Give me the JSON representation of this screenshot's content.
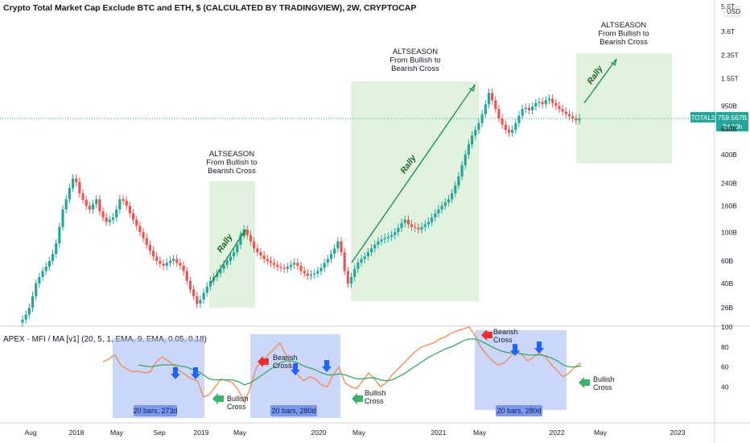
{
  "chart_data": [
    {
      "type": "candlestick",
      "title": "Crypto Total Market Cap Exclude BTC and ETH, $ (CALCULATED BY TRADINGVIEW), 2W, CRYPTOCAP",
      "scale": "log",
      "y_ticks": [
        "5.6T",
        "3.6T",
        "2.35T",
        "1.55T",
        "950B",
        "630B",
        "400B",
        "240B",
        "160B",
        "100B",
        "60B",
        "40B",
        "26B"
      ],
      "currency_label": "USD",
      "price_label": {
        "symbol": "TOTAL3",
        "value": "759.567B",
        "countdown": "2d 10h",
        "color": "#26a69a"
      },
      "x_ticks": [
        "Aug",
        "2018",
        "May",
        "Sep",
        "2019",
        "May",
        "2020",
        "May",
        "2021",
        "May",
        "2022",
        "May",
        "2023"
      ],
      "up_color": "#26a69a",
      "down_color": "#ef5350",
      "candles_close": [
        21,
        23,
        26,
        32,
        40,
        45,
        50,
        54,
        60,
        68,
        82,
        110,
        150,
        180,
        220,
        260,
        245,
        200,
        178,
        160,
        150,
        165,
        180,
        145,
        130,
        120,
        125,
        130,
        150,
        180,
        175,
        160,
        140,
        125,
        112,
        100,
        90,
        80,
        72,
        65,
        60,
        57,
        55,
        58,
        60,
        62,
        58,
        55,
        50,
        42,
        36,
        32,
        28,
        30,
        34,
        38,
        42,
        45,
        48,
        52,
        56,
        60,
        65,
        70,
        80,
        95,
        105,
        95,
        85,
        75,
        70,
        66,
        62,
        60,
        58,
        56,
        54,
        53,
        52,
        54,
        56,
        58,
        55,
        50,
        48,
        46,
        47,
        48,
        50,
        53,
        58,
        62,
        68,
        75,
        85,
        70,
        50,
        40,
        45,
        52,
        58,
        62,
        65,
        70,
        75,
        80,
        85,
        88,
        90,
        92,
        95,
        100,
        108,
        118,
        125,
        115,
        110,
        108,
        105,
        110,
        115,
        120,
        130,
        140,
        150,
        160,
        170,
        180,
        200,
        230,
        270,
        330,
        400,
        480,
        560,
        620,
        700,
        820,
        980,
        1200,
        1050,
        900,
        760,
        680,
        620,
        590,
        620,
        700,
        800,
        900,
        920,
        880,
        940,
        1000,
        1020,
        980,
        1050,
        1080,
        1000,
        950,
        900,
        860,
        820,
        790,
        760,
        735,
        759.567
      ],
      "annotations": [
        {
          "label": "ALTSEASON\nFrom Bullish to\nBearish Cross"
        },
        {
          "label": "Rally"
        },
        {
          "label": "ALTSEASON\nFrom Bullish to\nBearish Cross"
        },
        {
          "label": "Rally"
        },
        {
          "label": "ALTSEASON\nFrom Bullish to\nBearish Cross"
        },
        {
          "label": "Rally"
        }
      ]
    },
    {
      "type": "line",
      "title": "APEX - MFI / MA [v1] (20, 5, 1, EMA, 9, EMA, 0.05, 0.18)",
      "y_ticks": [
        "100",
        "80",
        "60",
        "40"
      ],
      "ylim": [
        20,
        100
      ],
      "series": [
        {
          "color": "#f4874b",
          "values": [
            65,
            68,
            72,
            62,
            58,
            55,
            56,
            54,
            55,
            65,
            70,
            66,
            62,
            56,
            52,
            48,
            46,
            30,
            32,
            40,
            48,
            46,
            44,
            36,
            24,
            40,
            60,
            65,
            72,
            78,
            84,
            72,
            60,
            52,
            46,
            50,
            48,
            42,
            40,
            52,
            60,
            44,
            40,
            38,
            46,
            54,
            48,
            40,
            44,
            52,
            58,
            64,
            70,
            76,
            80,
            82,
            84,
            88,
            90,
            94,
            96,
            98,
            100,
            92,
            80,
            72,
            66,
            62,
            64,
            70,
            76,
            72,
            66,
            70,
            74,
            70,
            62,
            56,
            50,
            54,
            60,
            64
          ]
        },
        {
          "color": "#3aa85e",
          "values": [
            null,
            null,
            null,
            null,
            null,
            null,
            62,
            61,
            60,
            61,
            62,
            62,
            62,
            61,
            60,
            58,
            56,
            52,
            48,
            47,
            47,
            47,
            47,
            45,
            42,
            44,
            48,
            52,
            56,
            60,
            64,
            66,
            66,
            64,
            61,
            59,
            57,
            54,
            52,
            52,
            53,
            52,
            50,
            48,
            48,
            49,
            49,
            47,
            46,
            47,
            50,
            53,
            57,
            61,
            65,
            69,
            72,
            75,
            78,
            80,
            83,
            86,
            88,
            88,
            86,
            83,
            80,
            77,
            75,
            74,
            74,
            73,
            72,
            72,
            72,
            71,
            69,
            66,
            62,
            60,
            60,
            61
          ]
        }
      ],
      "annotations": [
        {
          "label": "Bearish\nCross"
        },
        {
          "label": "Bullish\nCross"
        },
        {
          "label": "Bearish\nCross"
        },
        {
          "label": "Bullish\nCross"
        },
        {
          "label": "Bearish\nCross"
        },
        {
          "label": "Bullish\nCross"
        },
        {
          "label": "20 bars, 273d"
        },
        {
          "label": "20 bars, 280d"
        },
        {
          "label": "20 bars, 280d"
        }
      ]
    }
  ]
}
